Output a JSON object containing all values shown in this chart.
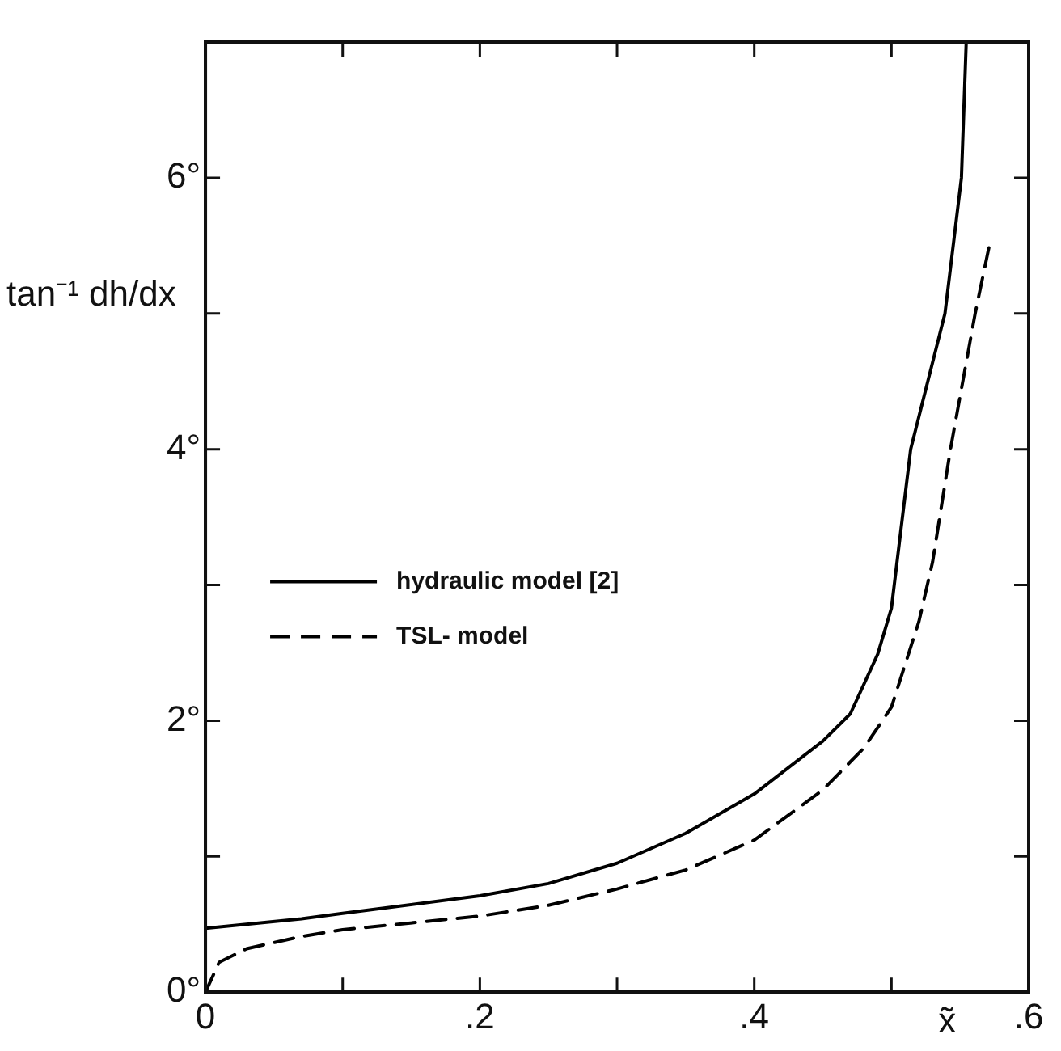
{
  "chart_data": {
    "type": "line",
    "xlabel": "x̃",
    "ylabel": "tan⁻¹ dh/dx",
    "xlim": [
      0,
      0.6
    ],
    "ylim": [
      0,
      7
    ],
    "xticks": [
      0,
      {
        "value": 0.1,
        "label": null
      },
      {
        "value": 0.2,
        "label": ".2"
      },
      {
        "value": 0.3,
        "label": null
      },
      {
        "value": 0.4,
        "label": ".4"
      },
      {
        "value": 0.5,
        "label": null
      },
      {
        "value": 0.6,
        "label": ".6"
      }
    ],
    "yticks": [
      {
        "value": 0,
        "label": "0°"
      },
      {
        "value": 1,
        "label": null
      },
      {
        "value": 2,
        "label": "2°"
      },
      {
        "value": 3,
        "label": null
      },
      {
        "value": 4,
        "label": "4°"
      },
      {
        "value": 5,
        "label": null
      },
      {
        "value": 6,
        "label": "6°"
      },
      {
        "value": 7,
        "label": null
      }
    ],
    "grid": false,
    "legend": "center left",
    "marker": "none",
    "series": [
      {
        "name": "hydraulic model [2]",
        "color": "#000000",
        "line_style": "solid",
        "x": [
          0,
          0.07,
          0.1,
          0.2,
          0.25,
          0.3,
          0.35,
          0.4,
          0.45,
          0.47,
          0.49,
          0.5,
          0.514,
          0.539,
          0.551,
          0.5545
        ],
        "values": [
          0.47,
          0.54,
          0.58,
          0.71,
          0.8,
          0.95,
          1.17,
          1.46,
          1.85,
          2.05,
          2.49,
          2.83,
          4,
          5,
          6,
          7
        ]
      },
      {
        "name": "TSL- model",
        "color": "#000000",
        "line_style": "dashed",
        "x": [
          0,
          0.01,
          0.03,
          0.07,
          0.1,
          0.2,
          0.25,
          0.3,
          0.35,
          0.4,
          0.45,
          0.48,
          0.5,
          0.52,
          0.53,
          0.543,
          0.561,
          0.5715
        ],
        "values": [
          0,
          0.22,
          0.32,
          0.41,
          0.46,
          0.56,
          0.64,
          0.76,
          0.9,
          1.12,
          1.49,
          1.8,
          2.1,
          2.73,
          3.17,
          4,
          5,
          5.51
        ]
      }
    ]
  }
}
